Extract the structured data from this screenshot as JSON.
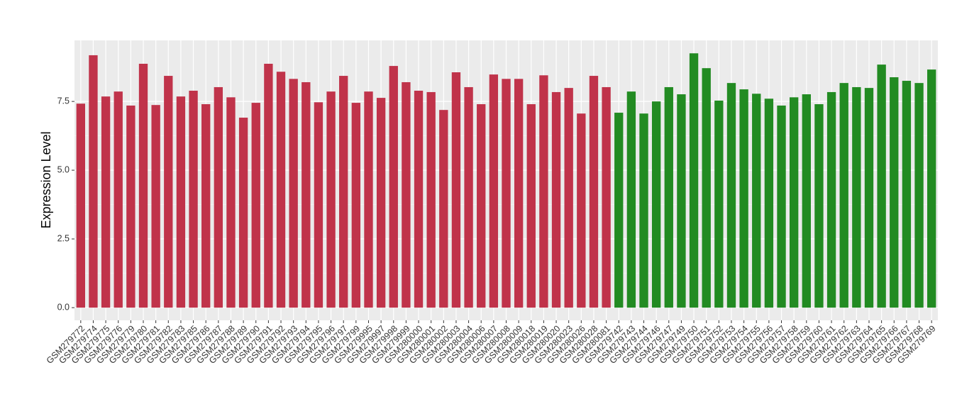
{
  "chart_data": {
    "type": "bar",
    "y_label": "Expression Level",
    "categories": [
      "GSM279772",
      "GSM279774",
      "GSM279775",
      "GSM279776",
      "GSM279779",
      "GSM279780",
      "GSM279781",
      "GSM279782",
      "GSM279783",
      "GSM279785",
      "GSM279786",
      "GSM279787",
      "GSM279788",
      "GSM279789",
      "GSM279790",
      "GSM279791",
      "GSM279792",
      "GSM279793",
      "GSM279794",
      "GSM279795",
      "GSM279796",
      "GSM279797",
      "GSM279799",
      "GSM279995",
      "GSM279997",
      "GSM279998",
      "GSM279999",
      "GSM280000",
      "GSM280001",
      "GSM280002",
      "GSM280003",
      "GSM280004",
      "GSM280006",
      "GSM280007",
      "GSM280008",
      "GSM280009",
      "GSM280018",
      "GSM280019",
      "GSM280020",
      "GSM280023",
      "GSM280026",
      "GSM280028",
      "GSM280081",
      "GSM279742",
      "GSM279743",
      "GSM279744",
      "GSM279746",
      "GSM279747",
      "GSM279749",
      "GSM279750",
      "GSM279751",
      "GSM279752",
      "GSM279753",
      "GSM279754",
      "GSM279755",
      "GSM279756",
      "GSM279757",
      "GSM279758",
      "GSM279759",
      "GSM279760",
      "GSM279761",
      "GSM279762",
      "GSM279763",
      "GSM279764",
      "GSM279765",
      "GSM279766",
      "GSM279767",
      "GSM279768",
      "GSM279769"
    ],
    "values": [
      7.42,
      9.18,
      7.68,
      7.86,
      7.35,
      8.87,
      7.37,
      8.43,
      7.68,
      7.89,
      7.4,
      8.02,
      7.65,
      6.91,
      7.45,
      8.87,
      8.58,
      8.32,
      8.2,
      7.47,
      7.86,
      8.43,
      7.45,
      7.86,
      7.63,
      8.79,
      8.2,
      7.89,
      7.84,
      7.19,
      8.56,
      8.02,
      7.4,
      8.48,
      8.32,
      8.32,
      7.4,
      8.45,
      7.84,
      7.99,
      7.06,
      8.43,
      8.02,
      7.09,
      7.86,
      7.06,
      7.5,
      8.02,
      7.76,
      9.25,
      8.71,
      7.53,
      8.17,
      7.94,
      7.78,
      7.6,
      7.35,
      7.65,
      7.76,
      7.4,
      7.84,
      8.17,
      8.02,
      7.99,
      8.84,
      8.38,
      8.25,
      8.17,
      8.66
    ],
    "colors": [
      "#c0334a",
      "#c0334a",
      "#c0334a",
      "#c0334a",
      "#c0334a",
      "#c0334a",
      "#c0334a",
      "#c0334a",
      "#c0334a",
      "#c0334a",
      "#c0334a",
      "#c0334a",
      "#c0334a",
      "#c0334a",
      "#c0334a",
      "#c0334a",
      "#c0334a",
      "#c0334a",
      "#c0334a",
      "#c0334a",
      "#c0334a",
      "#c0334a",
      "#c0334a",
      "#c0334a",
      "#c0334a",
      "#c0334a",
      "#c0334a",
      "#c0334a",
      "#c0334a",
      "#c0334a",
      "#c0334a",
      "#c0334a",
      "#c0334a",
      "#c0334a",
      "#c0334a",
      "#c0334a",
      "#c0334a",
      "#c0334a",
      "#c0334a",
      "#c0334a",
      "#c0334a",
      "#c0334a",
      "#c0334a",
      "#228b22",
      "#228b22",
      "#228b22",
      "#228b22",
      "#228b22",
      "#228b22",
      "#228b22",
      "#228b22",
      "#228b22",
      "#228b22",
      "#228b22",
      "#228b22",
      "#228b22",
      "#228b22",
      "#228b22",
      "#228b22",
      "#228b22",
      "#228b22",
      "#228b22",
      "#228b22",
      "#228b22",
      "#228b22",
      "#228b22",
      "#228b22",
      "#228b22",
      "#228b22"
    ],
    "ylim": [
      -0.46,
      9.72
    ],
    "yticks": [
      {
        "value": 0,
        "label": "0.0"
      },
      {
        "value": 2.5,
        "label": "2.5"
      },
      {
        "value": 5,
        "label": "5.0"
      },
      {
        "value": 7.5,
        "label": "7.5"
      }
    ],
    "grid": true
  }
}
